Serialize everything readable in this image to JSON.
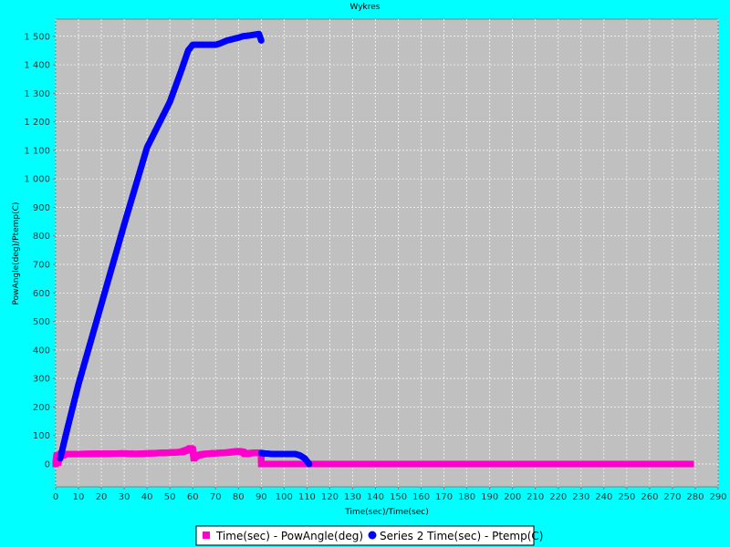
{
  "chart_data": {
    "type": "scatter",
    "title": "Wykres",
    "xlabel": "Time(sec)/Time(sec)",
    "ylabel": "PowAngle(deg)/Ptemp(C)",
    "xlim": [
      0,
      290
    ],
    "ylim": [
      -80,
      1560
    ],
    "x_ticks": [
      0,
      10,
      20,
      30,
      40,
      50,
      60,
      70,
      80,
      90,
      100,
      110,
      120,
      130,
      140,
      150,
      160,
      170,
      180,
      190,
      200,
      210,
      220,
      230,
      240,
      250,
      260,
      270,
      280,
      290
    ],
    "y_ticks": [
      0,
      100,
      200,
      300,
      400,
      500,
      600,
      700,
      800,
      900,
      1000,
      1100,
      1200,
      1300,
      1400,
      1500
    ],
    "y_tick_labels": [
      "0",
      "100",
      "200",
      "300",
      "400",
      "500",
      "600",
      "700",
      "800",
      "900",
      "1 000",
      "1 100",
      "1 200",
      "1 300",
      "1 400",
      "1 500"
    ],
    "grid": true,
    "background": "#c0c0c0",
    "legend_position": "bottom",
    "series": [
      {
        "name": "Time(sec) - PowAngle(deg)",
        "color": "#ff00cc",
        "marker": "square",
        "points": [
          [
            0,
            0
          ],
          [
            0.5,
            30
          ],
          [
            1,
            5
          ],
          [
            2,
            35
          ],
          [
            3,
            30
          ],
          [
            4,
            35
          ],
          [
            10,
            35
          ],
          [
            20,
            36
          ],
          [
            30,
            37
          ],
          [
            35,
            35
          ],
          [
            40,
            37
          ],
          [
            50,
            40
          ],
          [
            55,
            42
          ],
          [
            58,
            50
          ],
          [
            59,
            55
          ],
          [
            60,
            50
          ],
          [
            60.5,
            20
          ],
          [
            61,
            25
          ],
          [
            62,
            30
          ],
          [
            65,
            35
          ],
          [
            70,
            38
          ],
          [
            75,
            40
          ],
          [
            80,
            45
          ],
          [
            82,
            42
          ],
          [
            83,
            35
          ],
          [
            85,
            38
          ],
          [
            88,
            40
          ],
          [
            90,
            38
          ],
          [
            90,
            0
          ],
          [
            100,
            0
          ],
          [
            110,
            0
          ],
          [
            120,
            0
          ],
          [
            130,
            0
          ],
          [
            140,
            0
          ],
          [
            150,
            0
          ],
          [
            160,
            0
          ],
          [
            170,
            0
          ],
          [
            180,
            0
          ],
          [
            190,
            0
          ],
          [
            200,
            0
          ],
          [
            210,
            0
          ],
          [
            220,
            0
          ],
          [
            230,
            0
          ],
          [
            240,
            0
          ],
          [
            250,
            0
          ],
          [
            260,
            0
          ],
          [
            270,
            0
          ],
          [
            278,
            0
          ]
        ]
      },
      {
        "name": "Series 2 Time(sec) - Ptemp(C)",
        "color": "#0000ff",
        "marker": "circle",
        "points": [
          [
            2,
            20
          ],
          [
            5,
            120
          ],
          [
            10,
            280
          ],
          [
            20,
            560
          ],
          [
            30,
            840
          ],
          [
            40,
            1110
          ],
          [
            50,
            1270
          ],
          [
            55,
            1380
          ],
          [
            58,
            1450
          ],
          [
            60,
            1470
          ],
          [
            62,
            1470
          ],
          [
            65,
            1470
          ],
          [
            70,
            1470
          ],
          [
            72,
            1475
          ],
          [
            75,
            1485
          ],
          [
            80,
            1495
          ],
          [
            82,
            1500
          ],
          [
            85,
            1503
          ],
          [
            89,
            1508
          ],
          [
            90,
            1485
          ],
          [
            90,
            38
          ],
          [
            95,
            35
          ],
          [
            100,
            35
          ],
          [
            105,
            35
          ],
          [
            107,
            30
          ],
          [
            109,
            20
          ],
          [
            110,
            10
          ],
          [
            111,
            0
          ]
        ]
      }
    ]
  }
}
